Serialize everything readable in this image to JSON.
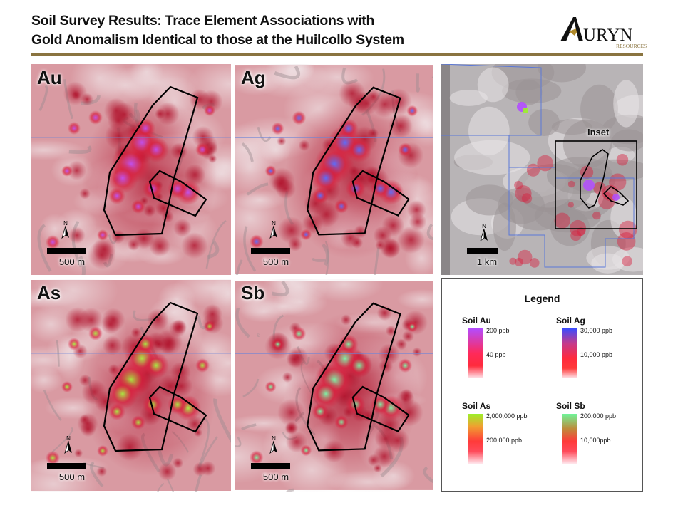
{
  "header": {
    "title_line1": "Soil Survey Results: Trace Element Associations with",
    "title_line2": "Gold Anomalism Identical to those at the Huilcollo System",
    "logo_text": "URYN",
    "logo_sub": "RESOURCES",
    "brand_color": "#8a7440"
  },
  "panels": [
    {
      "id": "au",
      "tag": "Au",
      "scale_label": "500 m",
      "north": "N",
      "anomaly_color": "#c050f0"
    },
    {
      "id": "ag",
      "tag": "Ag",
      "scale_label": "500 m",
      "north": "N",
      "anomaly_color": "#5a6cff"
    },
    {
      "id": "as",
      "tag": "As",
      "scale_label": "500 m",
      "north": "N",
      "anomaly_color": "#a8f040"
    },
    {
      "id": "sb",
      "tag": "Sb",
      "scale_label": "500 m",
      "north": "N",
      "anomaly_color": "#7cf8a8"
    }
  ],
  "overview": {
    "inset_label": "Inset",
    "scale_label": "1 km",
    "north": "N"
  },
  "legend": {
    "title": "Legend",
    "items": [
      {
        "name": "Soil Au",
        "high": "200 ppb",
        "low": "40 ppb",
        "high_color": "#b34cff"
      },
      {
        "name": "Soil Ag",
        "high": "30,000 ppb",
        "low": "10,000 ppb",
        "high_color": "#3a4cff"
      },
      {
        "name": "Soil As",
        "high": "2,000,000 ppb",
        "low": "200,000 ppb",
        "high_color": "#9cf02a"
      },
      {
        "name": "Soil Sb",
        "high": "200,000 ppb",
        "low": "10,000ppb",
        "high_color": "#6ff59a"
      }
    ]
  }
}
